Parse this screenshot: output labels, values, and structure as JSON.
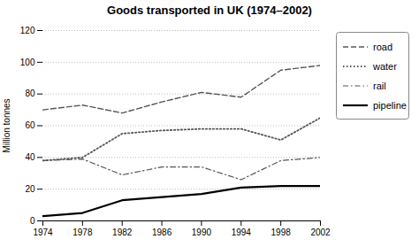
{
  "chart_data": {
    "type": "line",
    "title": "Goods transported in UK (1974–2002)",
    "ylabel": "Million tonnes",
    "x": [
      1974,
      1978,
      1982,
      1986,
      1990,
      1994,
      1998,
      2002
    ],
    "series": [
      {
        "name": "road",
        "color": "#555555",
        "line_style": "dashed",
        "values": [
          70,
          73,
          68,
          75,
          81,
          78,
          95,
          98
        ]
      },
      {
        "name": "water",
        "color": "#555555",
        "line_style": "dotted",
        "values": [
          38,
          40,
          55,
          57,
          58,
          58,
          51,
          65
        ]
      },
      {
        "name": "rail",
        "color": "#555555",
        "line_style": "dashdot",
        "values": [
          38,
          39,
          29,
          34,
          34,
          26,
          38,
          40
        ]
      },
      {
        "name": "pipeline",
        "color": "#000000",
        "line_style": "solid",
        "values": [
          3,
          5,
          13,
          15,
          17,
          21,
          22,
          22
        ]
      }
    ],
    "xlim": [
      1974,
      2002
    ],
    "xticks": [
      1974,
      1978,
      1982,
      1986,
      1990,
      1994,
      1998,
      2002
    ],
    "ylim": [
      0,
      120
    ],
    "yticks": [
      0,
      20,
      40,
      60,
      80,
      100,
      120
    ],
    "grid": true,
    "legend": "right"
  }
}
